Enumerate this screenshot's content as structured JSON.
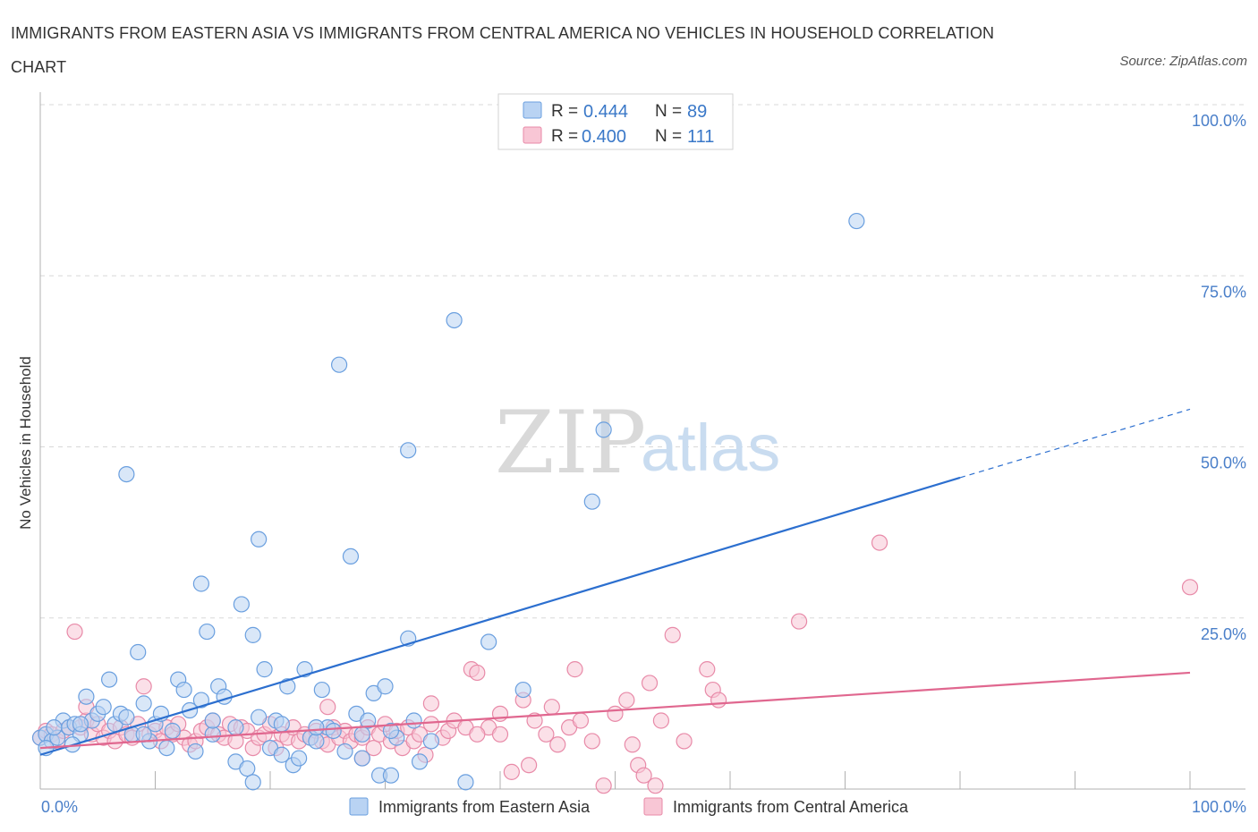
{
  "title": "IMMIGRANTS FROM EASTERN ASIA VS IMMIGRANTS FROM CENTRAL AMERICA NO VEHICLES IN HOUSEHOLD CORRELATION CHART",
  "source": "Source: ZipAtlas.com",
  "watermark": {
    "zip": "ZIP",
    "atlas": "atlas"
  },
  "colors": {
    "blue_fill": "#b9d3f3",
    "blue_stroke": "#6a9fdf",
    "blue_line": "#2c6fcf",
    "pink_fill": "#f8c6d5",
    "pink_stroke": "#e88aa8",
    "pink_line": "#e0678f",
    "tick_text": "#4a7fc9",
    "grid": "#d8d8d8"
  },
  "stats": [
    {
      "r_label": "R =",
      "r_value": "0.444",
      "n_label": "N =",
      "n_value": "89",
      "color": "blue"
    },
    {
      "r_label": "R =",
      "r_value": "0.400",
      "n_label": "N =",
      "n_value": "111",
      "color": "pink"
    }
  ],
  "chart_data": {
    "type": "scatter",
    "title": "IMMIGRANTS FROM EASTERN ASIA VS IMMIGRANTS FROM CENTRAL AMERICA NO VEHICLES IN HOUSEHOLD CORRELATION CHART",
    "xlabel": "",
    "ylabel": "No Vehicles in Household",
    "xlim": [
      0,
      100
    ],
    "ylim": [
      0,
      100
    ],
    "x_tick_labels": [
      "0.0%",
      "100.0%"
    ],
    "y_tick_labels": [
      "100.0%",
      "75.0%",
      "50.0%",
      "25.0%"
    ],
    "y_ticks": [
      100,
      75,
      50,
      25
    ],
    "grid": true,
    "legend_position": "bottom",
    "series": [
      {
        "name": "Immigrants from Eastern Asia",
        "color": "blue",
        "trend": {
          "x0": 0,
          "y0": 5,
          "x1": 80,
          "y1": 45.5,
          "dash_x1": 100,
          "dash_y1": 55.5
        },
        "points": [
          [
            0,
            7.5
          ],
          [
            0.5,
            8
          ],
          [
            1,
            7
          ],
          [
            1.5,
            7.5
          ],
          [
            2,
            10
          ],
          [
            2.5,
            9
          ],
          [
            3,
            9.5
          ],
          [
            3.5,
            8
          ],
          [
            4,
            13.5
          ],
          [
            4.5,
            10
          ],
          [
            5,
            11
          ],
          [
            5.5,
            12
          ],
          [
            6,
            16
          ],
          [
            6.5,
            9.5
          ],
          [
            7,
            11
          ],
          [
            7.5,
            10.5
          ],
          [
            8,
            8
          ],
          [
            8.5,
            20
          ],
          [
            9,
            12.5
          ],
          [
            9.5,
            7
          ],
          [
            10,
            9.5
          ],
          [
            10.5,
            11
          ],
          [
            11,
            6
          ],
          [
            11.5,
            8.5
          ],
          [
            12,
            16
          ],
          [
            12.5,
            14.5
          ],
          [
            13,
            11.5
          ],
          [
            13.5,
            5.5
          ],
          [
            14,
            13
          ],
          [
            14,
            30
          ],
          [
            14.5,
            23
          ],
          [
            15,
            8
          ],
          [
            15.5,
            15
          ],
          [
            16,
            13.5
          ],
          [
            17,
            4
          ],
          [
            17.5,
            27
          ],
          [
            18,
            3
          ],
          [
            18.5,
            1
          ],
          [
            18.5,
            22.5
          ],
          [
            19,
            10.5
          ],
          [
            19,
            36.5
          ],
          [
            19.5,
            17.5
          ],
          [
            20,
            6
          ],
          [
            20.5,
            10
          ],
          [
            21,
            5
          ],
          [
            21.5,
            15
          ],
          [
            22,
            3.5
          ],
          [
            22.5,
            4.5
          ],
          [
            23,
            17.5
          ],
          [
            23.5,
            7.5
          ],
          [
            24,
            7
          ],
          [
            24.5,
            14.5
          ],
          [
            25,
            9
          ],
          [
            25.5,
            8.5
          ],
          [
            26,
            62
          ],
          [
            26.5,
            5.5
          ],
          [
            27,
            34
          ],
          [
            27.5,
            11
          ],
          [
            28,
            4.5
          ],
          [
            28.5,
            10
          ],
          [
            29,
            14
          ],
          [
            29.5,
            2
          ],
          [
            30,
            15
          ],
          [
            30.5,
            2
          ],
          [
            31,
            7.5
          ],
          [
            32,
            49.5
          ],
          [
            32.5,
            10
          ],
          [
            32,
            22
          ],
          [
            33,
            4
          ],
          [
            34,
            7
          ],
          [
            36,
            68.5
          ],
          [
            37,
            1
          ],
          [
            39,
            21.5
          ],
          [
            42,
            14.5
          ],
          [
            48,
            42
          ],
          [
            49,
            52.5
          ],
          [
            71,
            83
          ],
          [
            0.5,
            6
          ],
          [
            1.2,
            9
          ],
          [
            2.8,
            6.5
          ],
          [
            9,
            8
          ],
          [
            15,
            10
          ],
          [
            17,
            9
          ],
          [
            21,
            9.5
          ],
          [
            24,
            9
          ],
          [
            28,
            8
          ],
          [
            30.5,
            8.5
          ],
          [
            3.5,
            9.5
          ],
          [
            7.5,
            46
          ]
        ]
      },
      {
        "name": "Immigrants from Central America",
        "color": "pink",
        "trend": {
          "x0": 0,
          "y0": 6,
          "x1": 100,
          "y1": 17
        },
        "points": [
          [
            0,
            7.5
          ],
          [
            0.5,
            8.5
          ],
          [
            1,
            8
          ],
          [
            1.5,
            7
          ],
          [
            2,
            8.5
          ],
          [
            2.5,
            9
          ],
          [
            3,
            23
          ],
          [
            3.5,
            9
          ],
          [
            4,
            10
          ],
          [
            4.5,
            8
          ],
          [
            5,
            9.5
          ],
          [
            5.5,
            7.5
          ],
          [
            6,
            8.5
          ],
          [
            6.5,
            7
          ],
          [
            7,
            9
          ],
          [
            7.5,
            8
          ],
          [
            8,
            7.5
          ],
          [
            8.5,
            9.5
          ],
          [
            9,
            15
          ],
          [
            9.5,
            8
          ],
          [
            10,
            8.5
          ],
          [
            10.5,
            7
          ],
          [
            11,
            9
          ],
          [
            11.5,
            8
          ],
          [
            12,
            9.5
          ],
          [
            12.5,
            7.5
          ],
          [
            13,
            6.5
          ],
          [
            13.5,
            7
          ],
          [
            14,
            8.5
          ],
          [
            14.5,
            9
          ],
          [
            15,
            10
          ],
          [
            15.5,
            8
          ],
          [
            16,
            7.5
          ],
          [
            16.5,
            9.5
          ],
          [
            17,
            7
          ],
          [
            17.5,
            9
          ],
          [
            18,
            8.5
          ],
          [
            18.5,
            6
          ],
          [
            19,
            7.5
          ],
          [
            19.5,
            8
          ],
          [
            20,
            9.5
          ],
          [
            20.5,
            6
          ],
          [
            21,
            8
          ],
          [
            21.5,
            7.5
          ],
          [
            22,
            9
          ],
          [
            22.5,
            7
          ],
          [
            23,
            8
          ],
          [
            23.5,
            7.5
          ],
          [
            24,
            8.5
          ],
          [
            24.5,
            7
          ],
          [
            25,
            6.5
          ],
          [
            25.5,
            9
          ],
          [
            26,
            7.5
          ],
          [
            26.5,
            8.5
          ],
          [
            27,
            7
          ],
          [
            27.5,
            8
          ],
          [
            28,
            7.5
          ],
          [
            28.5,
            9
          ],
          [
            29,
            6
          ],
          [
            29.5,
            8
          ],
          [
            30,
            9.5
          ],
          [
            30.5,
            7
          ],
          [
            31,
            8.5
          ],
          [
            31.5,
            6
          ],
          [
            32,
            9
          ],
          [
            32.5,
            7
          ],
          [
            33,
            8
          ],
          [
            34,
            9.5
          ],
          [
            35,
            7.5
          ],
          [
            35.5,
            8.5
          ],
          [
            36,
            10
          ],
          [
            37,
            9
          ],
          [
            37.5,
            17.5
          ],
          [
            38,
            17
          ],
          [
            39,
            9
          ],
          [
            40,
            8
          ],
          [
            41,
            2.5
          ],
          [
            42,
            13
          ],
          [
            42.5,
            3.5
          ],
          [
            43,
            10
          ],
          [
            44,
            8
          ],
          [
            45,
            6.5
          ],
          [
            46,
            9
          ],
          [
            46.5,
            17.5
          ],
          [
            47,
            10
          ],
          [
            48,
            7
          ],
          [
            49,
            0.5
          ],
          [
            50,
            11
          ],
          [
            51,
            13
          ],
          [
            51.5,
            6.5
          ],
          [
            52,
            3.5
          ],
          [
            52.5,
            2
          ],
          [
            53,
            15.5
          ],
          [
            54,
            10
          ],
          [
            55,
            22.5
          ],
          [
            56,
            7
          ],
          [
            58,
            17.5
          ],
          [
            58.5,
            14.5
          ],
          [
            59,
            13
          ],
          [
            66,
            24.5
          ],
          [
            73,
            36
          ],
          [
            100,
            29.5
          ],
          [
            4,
            12
          ],
          [
            25,
            12
          ],
          [
            34,
            12.5
          ],
          [
            38,
            8
          ],
          [
            40,
            11
          ],
          [
            44.5,
            12
          ],
          [
            53.5,
            0.5
          ],
          [
            28,
            4.5
          ],
          [
            33.5,
            5
          ]
        ]
      }
    ]
  }
}
